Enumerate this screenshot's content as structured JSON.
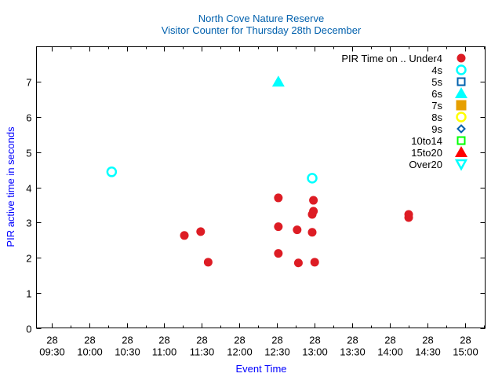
{
  "chart_data": {
    "type": "scatter",
    "title": "North Cove Nature Reserve",
    "subtitle": "Visitor Counter for Thursday 28th December",
    "xlabel": "Event Time",
    "ylabel": "PIR active time in seconds",
    "title_color": "#0060ad",
    "xlim": [
      "09:18",
      "15:16"
    ],
    "ylim": [
      0,
      8
    ],
    "yticks": [
      0,
      1,
      2,
      3,
      4,
      5,
      6,
      7
    ],
    "xticks": [
      {
        "day": "28",
        "time": "09:30"
      },
      {
        "day": "28",
        "time": "10:00"
      },
      {
        "day": "28",
        "time": "10:30"
      },
      {
        "day": "28",
        "time": "11:00"
      },
      {
        "day": "28",
        "time": "11:30"
      },
      {
        "day": "28",
        "time": "12:00"
      },
      {
        "day": "28",
        "time": "12:30"
      },
      {
        "day": "28",
        "time": "13:00"
      },
      {
        "day": "28",
        "time": "13:30"
      },
      {
        "day": "28",
        "time": "14:00"
      },
      {
        "day": "28",
        "time": "14:30"
      },
      {
        "day": "28",
        "time": "15:00"
      }
    ],
    "grid": false,
    "legend_title": "PIR Time on ..",
    "legend_position": "top-right",
    "series": [
      {
        "name": "Under4",
        "marker": "circle-filled",
        "color": "#dd1c24",
        "points": [
          [
            "11:16",
            2.63
          ],
          [
            "11:29",
            2.74
          ],
          [
            "11:35",
            1.87
          ],
          [
            "12:31",
            3.7
          ],
          [
            "12:31",
            2.88
          ],
          [
            "12:31",
            2.12
          ],
          [
            "12:46",
            2.79
          ],
          [
            "12:47",
            1.85
          ],
          [
            "12:59",
            3.63
          ],
          [
            "12:59",
            3.32
          ],
          [
            "12:58",
            3.23
          ],
          [
            "12:58",
            2.72
          ],
          [
            "13:00",
            1.87
          ],
          [
            "14:15",
            3.23
          ],
          [
            "14:15",
            3.14
          ]
        ]
      },
      {
        "name": "4s",
        "marker": "circle-open",
        "color": "#00ffff",
        "points": [
          [
            "10:18",
            4.44
          ],
          [
            "12:58",
            4.26
          ]
        ]
      },
      {
        "name": "5s",
        "marker": "square-open",
        "color": "#0060ad",
        "points": []
      },
      {
        "name": "6s",
        "marker": "triangle-filled",
        "color": "#00ffff",
        "points": [
          [
            "12:31",
            7.0
          ]
        ]
      },
      {
        "name": "7s",
        "marker": "square-filled",
        "color": "#e69f00",
        "points": []
      },
      {
        "name": "8s",
        "marker": "circle-open",
        "color": "#ffff00",
        "points": []
      },
      {
        "name": "9s",
        "marker": "diamond-open",
        "color": "#0060ad",
        "points": []
      },
      {
        "name": "10to14",
        "marker": "square-open",
        "color": "#00ff00",
        "points": []
      },
      {
        "name": "15to20",
        "marker": "triangle-filled",
        "color": "#ff0000",
        "points": []
      },
      {
        "name": "Over20",
        "marker": "triangle-down-open",
        "color": "#00ffff",
        "points": []
      }
    ]
  }
}
